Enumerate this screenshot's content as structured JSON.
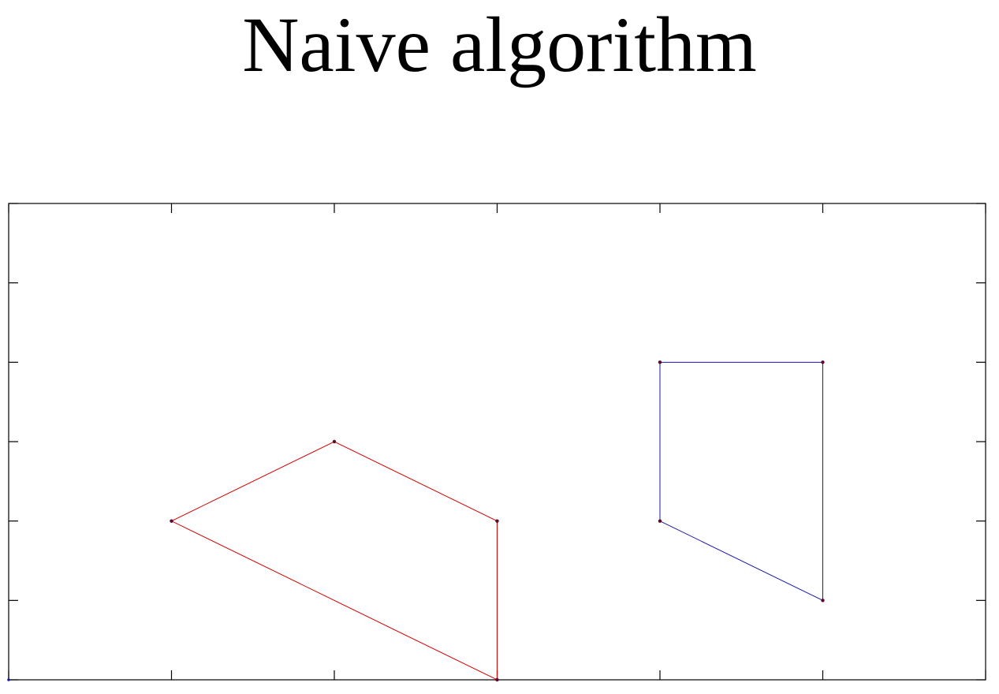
{
  "chart_data": {
    "type": "line",
    "title": "Naive algorithm",
    "xlabel": "",
    "ylabel": "",
    "xlim": [
      0,
      6
    ],
    "ylim": [
      0,
      6
    ],
    "grid": false,
    "x_ticks": [
      0,
      1,
      2,
      3,
      4,
      5,
      6
    ],
    "y_ticks": [
      0,
      1,
      2,
      3,
      4,
      5,
      6
    ],
    "show_tick_labels": false,
    "series": [
      {
        "color": "#d40000",
        "closed": true,
        "points": [
          [
            1,
            2
          ],
          [
            2,
            3
          ],
          [
            3,
            2
          ],
          [
            3,
            0
          ]
        ]
      },
      {
        "color": "#1a1aa8",
        "closed": true,
        "points": [
          [
            4,
            2
          ],
          [
            4,
            4
          ],
          [
            5,
            4
          ],
          [
            5,
            1
          ]
        ]
      }
    ]
  }
}
